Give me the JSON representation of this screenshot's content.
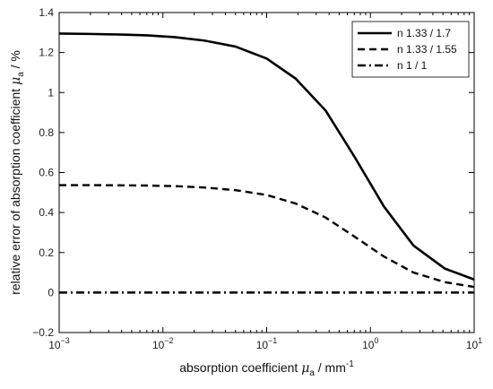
{
  "chart_data": {
    "type": "line",
    "title": "",
    "xlabel": {
      "prefix": "absorption coefficient ",
      "symbol": "μ",
      "sub": "a",
      "unit": " / mm",
      "unit_sup": "-1"
    },
    "ylabel": {
      "prefix": "relative error of absorption coefficient ",
      "symbol": "μ",
      "sub": "a",
      "unit": "  / %"
    },
    "xscale": "log",
    "xlim": [
      0.001,
      10
    ],
    "ylim": [
      -0.2,
      1.4
    ],
    "grid": false,
    "legend_position": "top-right",
    "x_ticks": [
      {
        "base": "10",
        "exp": "−3",
        "value": 0.001
      },
      {
        "base": "10",
        "exp": "−2",
        "value": 0.01
      },
      {
        "base": "10",
        "exp": "−1",
        "value": 0.1
      },
      {
        "base": "10",
        "exp": "0",
        "value": 1
      },
      {
        "base": "10",
        "exp": "1",
        "value": 10
      }
    ],
    "y_ticks": [
      {
        "label": "−0.2",
        "value": -0.2
      },
      {
        "label": "0",
        "value": 0
      },
      {
        "label": "0.2",
        "value": 0.2
      },
      {
        "label": "0.4",
        "value": 0.4
      },
      {
        "label": "0.6",
        "value": 0.6
      },
      {
        "label": "0.8",
        "value": 0.8
      },
      {
        "label": "1",
        "value": 1.0
      },
      {
        "label": "1.2",
        "value": 1.2
      },
      {
        "label": "1.4",
        "value": 1.4
      }
    ],
    "x": [
      0.001,
      0.002,
      0.004,
      0.007,
      0.013,
      0.025,
      0.05,
      0.1,
      0.19,
      0.37,
      0.7,
      1.35,
      2.6,
      5.2,
      10
    ],
    "series": [
      {
        "name": "n 1.33 / 1.7",
        "style": "solid",
        "values": [
          1.295,
          1.293,
          1.29,
          1.286,
          1.277,
          1.26,
          1.23,
          1.17,
          1.07,
          0.91,
          0.68,
          0.43,
          0.235,
          0.12,
          0.065
        ]
      },
      {
        "name": "n 1.33 / 1.55",
        "style": "dashed",
        "values": [
          0.537,
          0.537,
          0.536,
          0.535,
          0.532,
          0.525,
          0.512,
          0.488,
          0.445,
          0.375,
          0.28,
          0.18,
          0.1,
          0.052,
          0.028
        ]
      },
      {
        "name": "n 1 /  1",
        "style": "dashdot",
        "values": [
          0,
          0,
          0,
          0,
          0,
          0,
          0,
          0,
          0,
          0,
          0,
          0,
          0,
          0,
          0
        ]
      }
    ]
  }
}
